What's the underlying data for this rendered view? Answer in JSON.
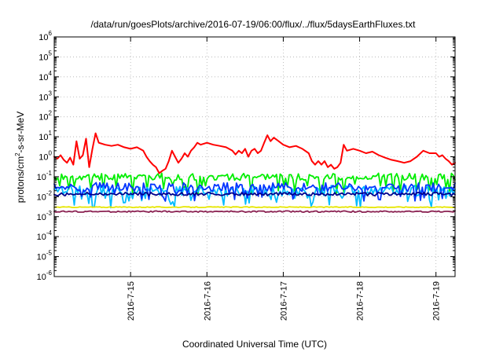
{
  "chart_data": {
    "type": "line",
    "title": "/data/run/goesPlots/archive/2016-07-19/06:00/flux/../flux/5daysEarthFluxes.txt",
    "xlabel": "Coordinated Universal Time (UTC)",
    "ylabel": {
      "pre": "protons/cm",
      "sup": "2",
      "post": "-s-sr-MeV"
    },
    "yscale": "log",
    "ylim": [
      1e-06,
      1000000.0
    ],
    "y_ticks": [
      {
        "value": 1e-06,
        "base": "10",
        "exp": "-6"
      },
      {
        "value": 1e-05,
        "base": "10",
        "exp": "-5"
      },
      {
        "value": 0.0001,
        "base": "10",
        "exp": "-4"
      },
      {
        "value": 0.001,
        "base": "10",
        "exp": "-3"
      },
      {
        "value": 0.01,
        "base": "10",
        "exp": "-2"
      },
      {
        "value": 0.1,
        "base": "10",
        "exp": "-1"
      },
      {
        "value": 1,
        "base": "10",
        "exp": "0"
      },
      {
        "value": 10,
        "base": "10",
        "exp": "1"
      },
      {
        "value": 100,
        "base": "10",
        "exp": "2"
      },
      {
        "value": 1000,
        "base": "10",
        "exp": "3"
      },
      {
        "value": 10000,
        "base": "10",
        "exp": "4"
      },
      {
        "value": 100000,
        "base": "10",
        "exp": "5"
      },
      {
        "value": 1000000,
        "base": "10",
        "exp": "6"
      }
    ],
    "xlim": [
      "2016-07-14 00:00",
      "2016-07-19 06:00"
    ],
    "x_ticks": [
      "2016-7-15",
      "2016-7-16",
      "2016-7-17",
      "2016-7-18",
      "2016-7-19"
    ],
    "grid": true,
    "legend": "none",
    "series": [
      {
        "color": "#ff0000",
        "points": [
          [
            "2016-07-14 00:00",
            1.0
          ],
          [
            "2016-07-14 01:00",
            0.8
          ],
          [
            "2016-07-14 02:00",
            1.2
          ],
          [
            "2016-07-14 03:00",
            0.7
          ],
          [
            "2016-07-14 04:00",
            0.5
          ],
          [
            "2016-07-14 05:00",
            0.9
          ],
          [
            "2016-07-14 06:00",
            0.4
          ],
          [
            "2016-07-14 07:00",
            6.0
          ],
          [
            "2016-07-14 08:00",
            0.8
          ],
          [
            "2016-07-14 09:00",
            1.2
          ],
          [
            "2016-07-14 10:00",
            8.0
          ],
          [
            "2016-07-14 11:00",
            0.3
          ],
          [
            "2016-07-14 12:00",
            2.5
          ],
          [
            "2016-07-14 13:00",
            15.0
          ],
          [
            "2016-07-14 14:00",
            5.0
          ],
          [
            "2016-07-14 16:00",
            4.0
          ],
          [
            "2016-07-14 18:00",
            3.5
          ],
          [
            "2016-07-14 20:00",
            4.0
          ],
          [
            "2016-07-14 22:00",
            3.0
          ],
          [
            "2016-07-15 00:00",
            2.5
          ],
          [
            "2016-07-15 02:00",
            3.0
          ],
          [
            "2016-07-15 04:00",
            2.0
          ],
          [
            "2016-07-15 05:00",
            1.0
          ],
          [
            "2016-07-15 06:00",
            0.6
          ],
          [
            "2016-07-15 07:00",
            0.4
          ],
          [
            "2016-07-15 08:00",
            0.3
          ],
          [
            "2016-07-15 09:00",
            0.15
          ],
          [
            "2016-07-15 10:00",
            0.2
          ],
          [
            "2016-07-15 11:00",
            0.25
          ],
          [
            "2016-07-15 12:00",
            0.6
          ],
          [
            "2016-07-15 13:00",
            2.0
          ],
          [
            "2016-07-15 14:00",
            1.0
          ],
          [
            "2016-07-15 15:00",
            0.5
          ],
          [
            "2016-07-15 16:00",
            0.8
          ],
          [
            "2016-07-15 17:00",
            1.5
          ],
          [
            "2016-07-15 18:00",
            1.0
          ],
          [
            "2016-07-15 19:00",
            2.0
          ],
          [
            "2016-07-15 20:00",
            3.0
          ],
          [
            "2016-07-15 21:00",
            5.0
          ],
          [
            "2016-07-15 22:00",
            4.0
          ],
          [
            "2016-07-16 00:00",
            5.0
          ],
          [
            "2016-07-16 02:00",
            4.0
          ],
          [
            "2016-07-16 04:00",
            3.5
          ],
          [
            "2016-07-16 06:00",
            3.0
          ],
          [
            "2016-07-16 08:00",
            2.0
          ],
          [
            "2016-07-16 09:00",
            1.3
          ],
          [
            "2016-07-16 10:00",
            2.0
          ],
          [
            "2016-07-16 11:00",
            1.5
          ],
          [
            "2016-07-16 12:00",
            2.5
          ],
          [
            "2016-07-16 13:00",
            1.0
          ],
          [
            "2016-07-16 14:00",
            2.0
          ],
          [
            "2016-07-16 15:00",
            2.5
          ],
          [
            "2016-07-16 16:00",
            1.5
          ],
          [
            "2016-07-16 17:00",
            2.0
          ],
          [
            "2016-07-16 18:00",
            5.0
          ],
          [
            "2016-07-16 19:00",
            12.0
          ],
          [
            "2016-07-16 20:00",
            6.0
          ],
          [
            "2016-07-16 21:00",
            9.0
          ],
          [
            "2016-07-16 22:00",
            7.0
          ],
          [
            "2016-07-17 00:00",
            4.0
          ],
          [
            "2016-07-17 02:00",
            3.0
          ],
          [
            "2016-07-17 04:00",
            3.5
          ],
          [
            "2016-07-17 06:00",
            2.5
          ],
          [
            "2016-07-17 08:00",
            1.5
          ],
          [
            "2016-07-17 09:00",
            0.6
          ],
          [
            "2016-07-17 10:00",
            0.4
          ],
          [
            "2016-07-17 11:00",
            0.6
          ],
          [
            "2016-07-17 12:00",
            0.4
          ],
          [
            "2016-07-17 13:00",
            0.6
          ],
          [
            "2016-07-17 14:00",
            0.3
          ],
          [
            "2016-07-17 15:00",
            0.4
          ],
          [
            "2016-07-17 16:00",
            0.25
          ],
          [
            "2016-07-17 17:00",
            0.3
          ],
          [
            "2016-07-17 18:00",
            0.5
          ],
          [
            "2016-07-17 19:00",
            4.0
          ],
          [
            "2016-07-17 20:00",
            2.0
          ],
          [
            "2016-07-17 22:00",
            2.5
          ],
          [
            "2016-07-18 00:00",
            2.0
          ],
          [
            "2016-07-18 02:00",
            1.5
          ],
          [
            "2016-07-18 04:00",
            1.8
          ],
          [
            "2016-07-18 06:00",
            1.2
          ],
          [
            "2016-07-18 08:00",
            0.9
          ],
          [
            "2016-07-18 10:00",
            0.7
          ],
          [
            "2016-07-18 12:00",
            0.6
          ],
          [
            "2016-07-18 14:00",
            0.5
          ],
          [
            "2016-07-18 16:00",
            0.6
          ],
          [
            "2016-07-18 18:00",
            1.0
          ],
          [
            "2016-07-18 20:00",
            2.0
          ],
          [
            "2016-07-18 22:00",
            1.5
          ],
          [
            "2016-07-19 00:00",
            1.5
          ],
          [
            "2016-07-19 01:00",
            1.0
          ],
          [
            "2016-07-19 02:00",
            1.2
          ],
          [
            "2016-07-19 03:00",
            0.8
          ],
          [
            "2016-07-19 04:00",
            0.6
          ],
          [
            "2016-07-19 05:00",
            0.4
          ],
          [
            "2016-07-19 06:00",
            0.5
          ]
        ]
      },
      {
        "color": "#00ee00",
        "baseline": 0.1,
        "variation": 0.35,
        "dips": 0.9,
        "phase": 1
      },
      {
        "color": "#00bbff",
        "baseline": 0.02,
        "variation": 0.55,
        "dips": 0.9,
        "phase": 2
      },
      {
        "color": "#0033ff",
        "baseline": 0.03,
        "variation": 0.45,
        "dips": 0.7,
        "phase": 3
      },
      {
        "color": "#00008b",
        "baseline": 0.014,
        "variation": 0.15,
        "dips": 0.1,
        "phase": 4
      },
      {
        "color": "#e6e600",
        "baseline": 0.003,
        "variation": 0.04,
        "dips": 0.0,
        "phase": 5
      },
      {
        "color": "#8b2252",
        "baseline": 0.0018,
        "variation": 0.07,
        "dips": 0.0,
        "phase": 6
      }
    ]
  }
}
